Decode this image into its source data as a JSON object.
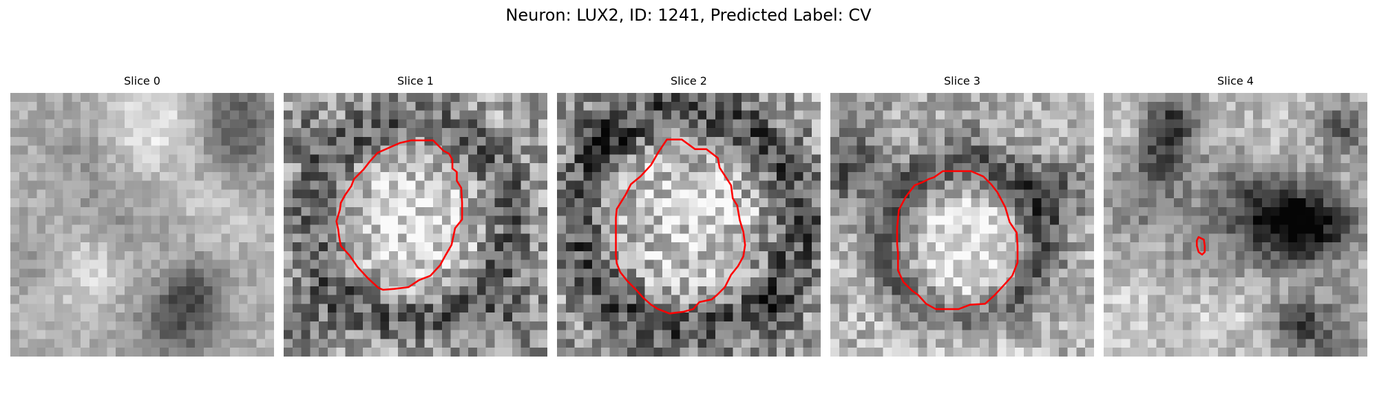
{
  "figure": {
    "title": "Neuron: LUX2, ID: 1241, Predicted Label: CV",
    "contour_color": "#ff0000"
  },
  "panels": [
    {
      "title": "Slice 0"
    },
    {
      "title": "Slice 1"
    },
    {
      "title": "Slice 2"
    },
    {
      "title": "Slice 3"
    },
    {
      "title": "Slice 4"
    }
  ]
}
